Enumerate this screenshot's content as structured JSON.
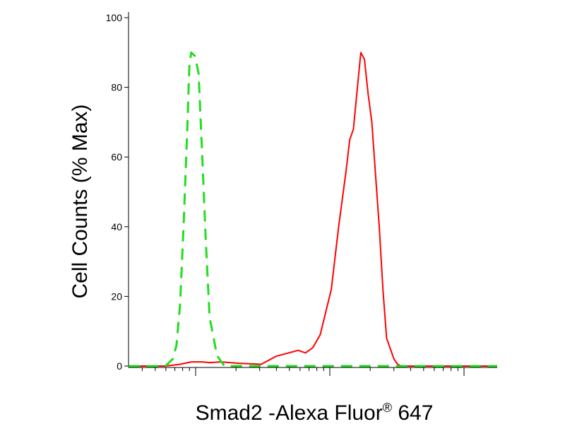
{
  "chart_data": {
    "type": "line",
    "title": "",
    "xlabel_main": "Smad2 -Alexa Fluor",
    "xlabel_sup": "®",
    "xlabel_tail": " 647",
    "ylabel": "Cell Counts (% Max)",
    "ylim": [
      0,
      100
    ],
    "xlim": [
      0,
      100
    ],
    "xscale": "log-like (biexponential)",
    "yticks": [
      "0",
      "20",
      "40",
      "60",
      "80",
      "100"
    ],
    "ytick_values": [
      0,
      20,
      40,
      60,
      80,
      100
    ],
    "grid": false,
    "legend": "none",
    "series": [
      {
        "color": "#ff0000",
        "dash": "solid",
        "x": [
          0,
          10,
          14,
          17,
          20,
          22,
          25,
          30,
          36,
          40,
          46,
          48,
          50,
          52,
          55,
          57,
          59,
          60,
          61,
          62,
          63,
          64,
          65,
          66,
          67,
          68,
          69,
          70,
          72,
          73,
          74,
          75,
          76,
          78,
          80,
          100
        ],
        "y": [
          0,
          0,
          0.5,
          1.2,
          1.2,
          1.0,
          1.2,
          0.8,
          0.5,
          2.8,
          4.5,
          3.8,
          5.3,
          9,
          22,
          40,
          56,
          65,
          68,
          79,
          90,
          88,
          78,
          70,
          55,
          40,
          22,
          8,
          2,
          0.5,
          0,
          0,
          0,
          0,
          0,
          0
        ]
      },
      {
        "color": "#22dd22",
        "dash": "dashed",
        "x": [
          0,
          10,
          12,
          13,
          14,
          15,
          16,
          16.5,
          17,
          18,
          19,
          20,
          21,
          22,
          24,
          26,
          30,
          100
        ],
        "y": [
          0,
          0,
          2,
          6,
          18,
          42,
          70,
          86,
          90,
          89,
          84,
          60,
          35,
          14,
          3,
          0,
          0,
          0
        ]
      }
    ]
  }
}
